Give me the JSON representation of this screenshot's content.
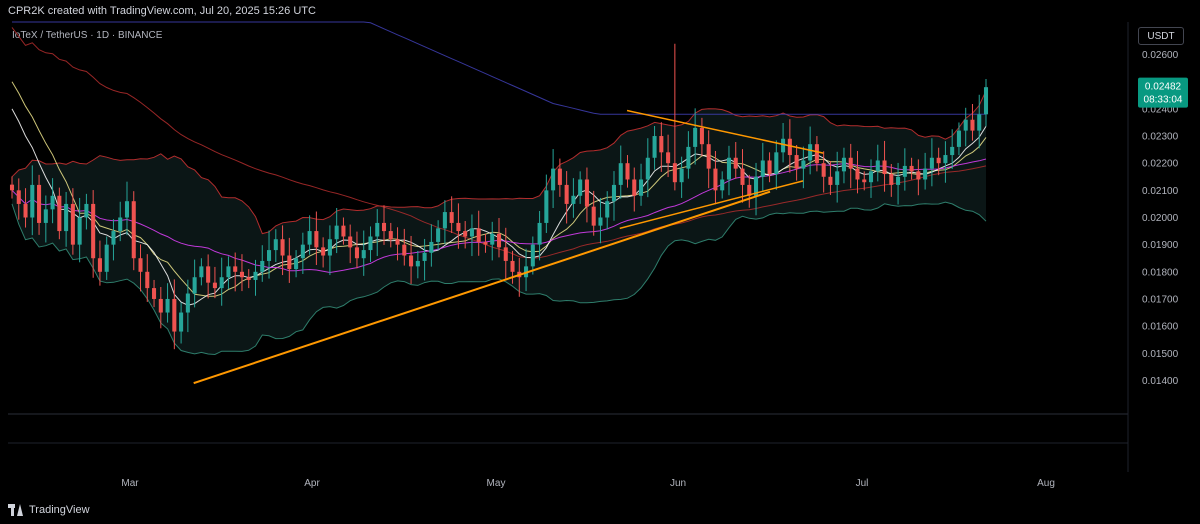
{
  "header": {
    "attribution": "CPR2K created with TradingView.com, Jul 20, 2025 15:26 UTC",
    "symbol": "IoTeX / TetherUS · 1D · BINANCE",
    "currency": "USDT"
  },
  "footer": {
    "logo_text": "TradingView"
  },
  "colors": {
    "background": "#000000",
    "up": "#26a69a",
    "down": "#ef5350",
    "trendline": "#ff9800",
    "ma_blue": "#3f3fb5",
    "ma_red": "#b22d2d",
    "ma_yellow": "#f0e68c",
    "ma_white": "#ffffff",
    "ma_pink": "#e040fb",
    "bb_band": "#2e7d6b",
    "price_tag": "#089981"
  },
  "chart_data": {
    "type": "candlestick",
    "title": "IoTeX / TetherUS · 1D · BINANCE",
    "x_ticks": [
      "Mar",
      "Apr",
      "May",
      "Jun",
      "Jul",
      "Aug"
    ],
    "y_ticks": [
      "0.02600",
      "0.02500",
      "0.02400",
      "0.02300",
      "0.02200",
      "0.02100",
      "0.02000",
      "0.01900",
      "0.01800",
      "0.01700",
      "0.01600",
      "0.01500",
      "0.01400"
    ],
    "ylim": [
      0.0128,
      0.0272
    ],
    "last_price": "0.02482",
    "countdown": "08:33:04",
    "grid": false,
    "series": [
      {
        "name": "",
        "values": [
          0.021,
          0.0205,
          0.02,
          0.0212,
          0.0198,
          0.0203,
          0.0208,
          0.0195,
          0.0205,
          0.019,
          0.02,
          0.0205,
          0.0185,
          0.018,
          0.019,
          0.0195,
          0.02,
          0.0206,
          0.0185,
          0.018,
          0.0174,
          0.017,
          0.0165,
          0.017,
          0.0158,
          0.0165,
          0.0172,
          0.0178,
          0.0182,
          0.0176,
          0.0174,
          0.0178,
          0.0182,
          0.018,
          0.0178,
          0.0177,
          0.018,
          0.0184,
          0.0188,
          0.0192,
          0.0186,
          0.0181,
          0.0185,
          0.019,
          0.0195,
          0.0189,
          0.0186,
          0.0192,
          0.0197,
          0.0193,
          0.0189,
          0.0185,
          0.0188,
          0.0193,
          0.0198,
          0.0195,
          0.0192,
          0.019,
          0.0186,
          0.0182,
          0.0184,
          0.0187,
          0.0191,
          0.0196,
          0.0202,
          0.0198,
          0.0195,
          0.0193,
          0.0196,
          0.0191,
          0.019,
          0.0194,
          0.0189,
          0.0184,
          0.018,
          0.0178,
          0.0182,
          0.019,
          0.0198,
          0.021,
          0.0218,
          0.0212,
          0.0205,
          0.0208,
          0.0214,
          0.0204,
          0.0197,
          0.02,
          0.0206,
          0.0212,
          0.022,
          0.0214,
          0.0208,
          0.0214,
          0.0222,
          0.023,
          0.0224,
          0.022,
          0.0213,
          0.0218,
          0.0226,
          0.0233,
          0.0227,
          0.0218,
          0.021,
          0.0214,
          0.0222,
          0.0218,
          0.0212,
          0.0208,
          0.0215,
          0.0221,
          0.0216,
          0.0224,
          0.0229,
          0.0223,
          0.0218,
          0.0221,
          0.0227,
          0.022,
          0.0215,
          0.0212,
          0.0217,
          0.0222,
          0.0218,
          0.0214,
          0.0213,
          0.0217,
          0.0221,
          0.0216,
          0.0212,
          0.0215,
          0.0219,
          0.0217,
          0.0214,
          0.0218,
          0.0222,
          0.022,
          0.0223,
          0.0226,
          0.0232,
          0.0236,
          0.0232,
          0.0238,
          0.0248
        ]
      }
    ],
    "annotations": [
      {
        "type": "trendline",
        "from": [
          0.35,
          0.0139
        ],
        "to": [
          3.5,
          0.02095
        ]
      },
      {
        "type": "trendline",
        "from": [
          2.72,
          0.02394
        ],
        "to": [
          3.79,
          0.02237
        ]
      },
      {
        "type": "trendline",
        "from": [
          2.68,
          0.0196
        ],
        "to": [
          3.68,
          0.02135
        ]
      }
    ]
  }
}
